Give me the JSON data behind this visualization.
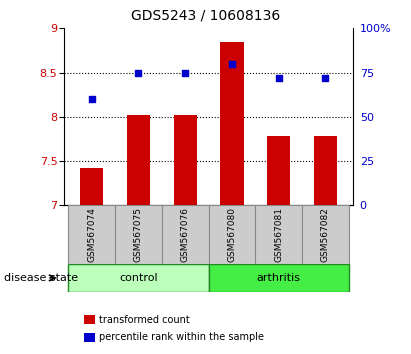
{
  "title": "GDS5243 / 10608136",
  "samples": [
    "GSM567074",
    "GSM567075",
    "GSM567076",
    "GSM567080",
    "GSM567081",
    "GSM567082"
  ],
  "bar_values": [
    7.42,
    8.02,
    8.02,
    8.85,
    7.78,
    7.78
  ],
  "bar_bottom": 7.0,
  "dot_values_pct": [
    60,
    75,
    75,
    80,
    72,
    72
  ],
  "bar_color": "#cc0000",
  "dot_color": "#0000cc",
  "ylim_left": [
    7.0,
    9.0
  ],
  "ylim_right": [
    0,
    100
  ],
  "yticks_left": [
    7.0,
    7.5,
    8.0,
    8.5,
    9.0
  ],
  "yticks_right": [
    0,
    25,
    50,
    75,
    100
  ],
  "ytick_labels_left": [
    "7",
    "7.5",
    "8",
    "8.5",
    "9"
  ],
  "ytick_labels_right": [
    "0",
    "25",
    "50",
    "75",
    "100%"
  ],
  "hlines": [
    7.5,
    8.0,
    8.5
  ],
  "control_label": "control",
  "arthritis_label": "arthritis",
  "disease_state_label": "disease state",
  "control_color": "#bbffbb",
  "arthritis_color": "#44ee44",
  "legend_bar_label": "transformed count",
  "legend_dot_label": "percentile rank within the sample",
  "bar_width": 0.5,
  "plot_bg_color": "#ffffff",
  "tick_label_color_left": "#cc0000",
  "tick_label_color_right": "#0000cc",
  "sample_box_color": "#cccccc",
  "sample_box_edge": "#888888"
}
